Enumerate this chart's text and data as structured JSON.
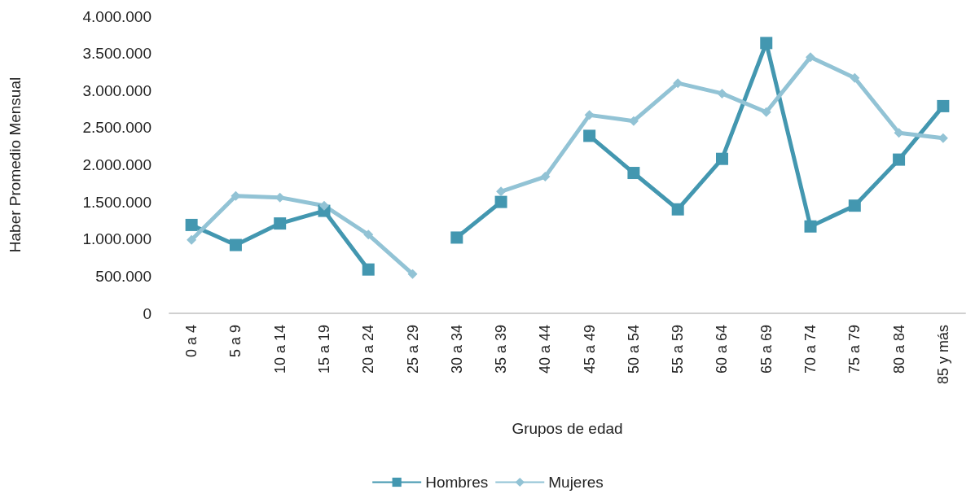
{
  "chart_data": {
    "type": "line",
    "xlabel": "Grupos de edad",
    "ylabel": "Haber Promedio Mensual",
    "categories": [
      "0 a 4",
      "5 a 9",
      "10 a 14",
      "15 a 19",
      "20 a 24",
      "25 a 29",
      "30 a 34",
      "35 a 39",
      "40 a 44",
      "45 a 49",
      "50 a 54",
      "55 a 59",
      "60 a 64",
      "65 a 69",
      "70 a 74",
      "75 a 79",
      "80 a 84",
      "85 y más"
    ],
    "series": [
      {
        "name": "Hombres",
        "color": "#4397b0",
        "marker": "square",
        "values": [
          1190000,
          920000,
          1210000,
          1380000,
          590000,
          null,
          1020000,
          1500000,
          null,
          2390000,
          1890000,
          1400000,
          2080000,
          3640000,
          1170000,
          1450000,
          2070000,
          2790000
        ]
      },
      {
        "name": "Mujeres",
        "color": "#92c3d5",
        "marker": "diamond",
        "values": [
          990000,
          1580000,
          1560000,
          1450000,
          1060000,
          530000,
          null,
          1640000,
          1840000,
          2670000,
          2590000,
          3100000,
          2960000,
          2710000,
          3450000,
          3170000,
          2430000,
          2360000
        ]
      }
    ],
    "ylim": [
      0,
      4000000
    ],
    "yticks": [
      0,
      {
        "value": 500000,
        "label": "500.000"
      },
      {
        "value": 1000000,
        "label": "1.000.000"
      },
      {
        "value": 1500000,
        "label": "1.500.000"
      },
      {
        "value": 2000000,
        "label": "2.000.000"
      },
      {
        "value": 2500000,
        "label": "2.500.000"
      },
      {
        "value": 3000000,
        "label": "3.000.000"
      },
      {
        "value": 3500000,
        "label": "3.500.000"
      },
      {
        "value": 4000000,
        "label": "4.000.000"
      }
    ],
    "grid": false,
    "legend": "bottom"
  }
}
